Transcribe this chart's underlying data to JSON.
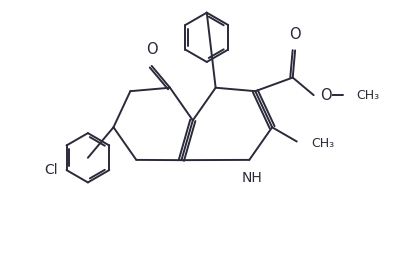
{
  "background_color": "#ffffff",
  "line_color": "#2a2a3a",
  "line_width": 1.4,
  "font_size": 9.5,
  "figsize": [
    3.97,
    2.71
  ],
  "xlim": [
    0,
    10
  ],
  "ylim": [
    0,
    7
  ]
}
